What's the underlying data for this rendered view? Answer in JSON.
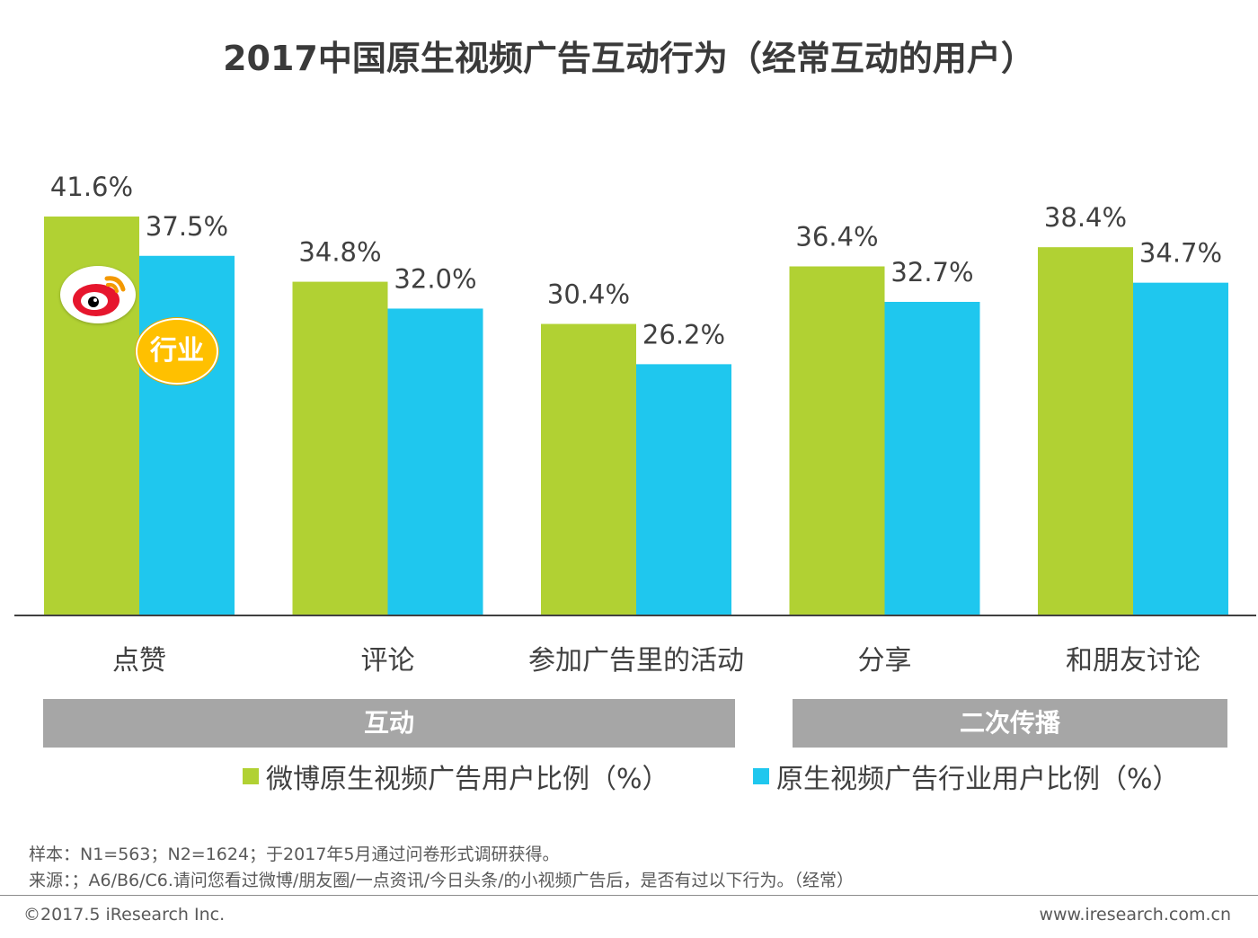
{
  "title": "2017中国原生视频广告互动行为（经常互动的用户）",
  "chart_data": {
    "type": "bar",
    "categories": [
      "点赞",
      "评论",
      "参加广告里的活动",
      "分享",
      "和朋友讨论"
    ],
    "series": [
      {
        "name": "微博原生视频广告用户比例（%）",
        "values": [
          41.6,
          34.8,
          30.4,
          36.4,
          38.4
        ],
        "color": "#b1d133"
      },
      {
        "name": "原生视频广告行业用户比例（%）",
        "values": [
          37.5,
          32.0,
          26.2,
          32.7,
          34.7
        ],
        "color": "#1fc7ee"
      }
    ],
    "value_labels": [
      [
        "41.6%",
        "34.8%",
        "30.4%",
        "36.4%",
        "38.4%"
      ],
      [
        "37.5%",
        "32.0%",
        "26.2%",
        "32.7%",
        "34.7%"
      ]
    ],
    "ylim": [
      0,
      41.6
    ],
    "grid": false,
    "legend": "bottom"
  },
  "groups": [
    {
      "label": "互动"
    },
    {
      "label": "二次传播"
    }
  ],
  "badges": {
    "industry": "行业"
  },
  "footnotes": {
    "sample": "样本：N1=563；N2=1624；于2017年5月通过问卷形式调研获得。",
    "source": "来源：；A6/B6/C6.请问您看过微博/朋友圈/一点资讯/今日头条/的小视频广告后，是否有过以下行为。（经常）"
  },
  "footer": {
    "copyright": "©2017.5 iResearch Inc.",
    "website": "www.iresearch.com.cn"
  }
}
